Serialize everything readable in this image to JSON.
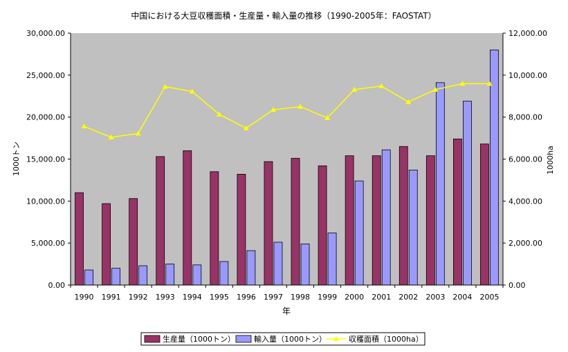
{
  "chart_data": {
    "type": "bar",
    "title": "中国における大豆収穫面積・生産量・輸入量の推移（1990-2005年：FAOSTAT）",
    "xlabel": "年",
    "ylabel": "1000トン",
    "y2label": "1000ha",
    "categories": [
      "1990",
      "1991",
      "1992",
      "1993",
      "1994",
      "1995",
      "1996",
      "1997",
      "1998",
      "1999",
      "2000",
      "2001",
      "2002",
      "2003",
      "2004",
      "2005"
    ],
    "ylim": [
      0,
      30000
    ],
    "y2lim": [
      0,
      12000
    ],
    "yticks": [
      "0.00",
      "5,000.00",
      "10,000.00",
      "15,000.00",
      "20,000.00",
      "25,000.00",
      "30,000.00"
    ],
    "y2ticks": [
      "0.00",
      "2,000.00",
      "4,000.00",
      "6,000.00",
      "8,000.00",
      "10,000.00",
      "12,000.00"
    ],
    "grid": false,
    "plot_background": "#c0c0c0",
    "legend_position": "bottom",
    "series": [
      {
        "name": "生産量（1000トン）",
        "type": "bar",
        "axis": "left",
        "color": "#993366",
        "values": [
          11000,
          9700,
          10300,
          15300,
          16000,
          13500,
          13200,
          14700,
          15100,
          14200,
          15400,
          15400,
          16500,
          15400,
          17400,
          16800
        ]
      },
      {
        "name": "輸入量（1000トン）",
        "type": "bar",
        "axis": "left",
        "color": "#9999ff",
        "values": [
          1800,
          2000,
          2300,
          2500,
          2400,
          2800,
          4100,
          5100,
          4900,
          6200,
          12400,
          16100,
          13700,
          24100,
          21900,
          28000
        ]
      },
      {
        "name": "収穫面積（1000ha）",
        "type": "line",
        "axis": "right",
        "color": "#ffff00",
        "values": [
          7560,
          7040,
          7220,
          9450,
          9220,
          8130,
          7470,
          8350,
          8500,
          7960,
          9310,
          9480,
          8720,
          9310,
          9590,
          9590
        ]
      }
    ]
  }
}
